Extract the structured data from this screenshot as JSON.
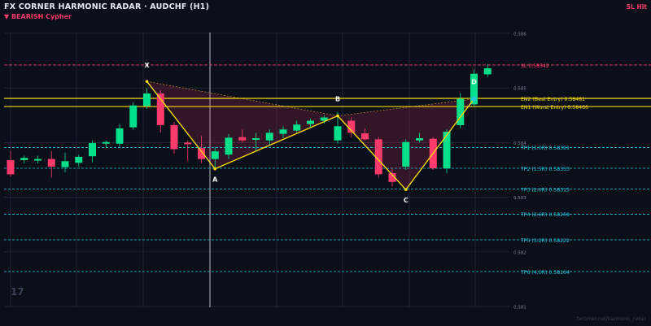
{
  "header": {
    "title": "FX CORNER HARMONIC RADAR  ·  AUDCHF (H1)",
    "pattern_label": "▼ BEARISH  Cypher",
    "status": "SL Hit"
  },
  "watermark": {
    "logo": "17",
    "source": "fxcorner.net/harmonic_radar"
  },
  "colors": {
    "background": "#0b0f1a",
    "grid": "#2a3142",
    "bull": "#00e08a",
    "bear": "#ff3b6b",
    "pattern_line": "#f5d90a",
    "sl": "#ff3b6b",
    "entry": "#f5d90a",
    "tp": "#1fc8dc",
    "d_marker": "#1fc8dc"
  },
  "chart_data": {
    "type": "candlestick",
    "symbol": "AUDCHF",
    "timeframe": "H1",
    "ylim": [
      0.581,
      0.586
    ],
    "y_ticks": [
      0.581,
      0.582,
      0.583,
      0.584,
      0.585,
      0.586
    ],
    "y_tick_labels": [
      "0.581",
      "0.582",
      "0.583",
      "0.584",
      "0.585",
      "0.586"
    ],
    "candles": [
      {
        "o": 0.58368,
        "h": 0.58385,
        "l": 0.58338,
        "c": 0.58342
      },
      {
        "o": 0.58368,
        "h": 0.58376,
        "l": 0.58362,
        "c": 0.58372
      },
      {
        "o": 0.58368,
        "h": 0.58376,
        "l": 0.58362,
        "c": 0.5837
      },
      {
        "o": 0.5837,
        "h": 0.58384,
        "l": 0.58336,
        "c": 0.58356
      },
      {
        "o": 0.58355,
        "h": 0.58382,
        "l": 0.58346,
        "c": 0.58366
      },
      {
        "o": 0.58363,
        "h": 0.58378,
        "l": 0.58356,
        "c": 0.58374
      },
      {
        "o": 0.58375,
        "h": 0.58404,
        "l": 0.58364,
        "c": 0.58399
      },
      {
        "o": 0.58398,
        "h": 0.58404,
        "l": 0.5839,
        "c": 0.58401
      },
      {
        "o": 0.58398,
        "h": 0.58434,
        "l": 0.58392,
        "c": 0.58426
      },
      {
        "o": 0.58428,
        "h": 0.58474,
        "l": 0.58424,
        "c": 0.58468
      },
      {
        "o": 0.58467,
        "h": 0.585,
        "l": 0.58462,
        "c": 0.5849
      },
      {
        "o": 0.5849,
        "h": 0.58496,
        "l": 0.58418,
        "c": 0.58432
      },
      {
        "o": 0.58432,
        "h": 0.58438,
        "l": 0.5838,
        "c": 0.58388
      },
      {
        "o": 0.584,
        "h": 0.58404,
        "l": 0.58366,
        "c": 0.58398
      },
      {
        "o": 0.5839,
        "h": 0.58412,
        "l": 0.58362,
        "c": 0.5837
      },
      {
        "o": 0.5837,
        "h": 0.58392,
        "l": 0.58352,
        "c": 0.58384
      },
      {
        "o": 0.58378,
        "h": 0.58416,
        "l": 0.5837,
        "c": 0.58409
      },
      {
        "o": 0.5841,
        "h": 0.58424,
        "l": 0.584,
        "c": 0.58404
      },
      {
        "o": 0.58408,
        "h": 0.58418,
        "l": 0.58384,
        "c": 0.58408
      },
      {
        "o": 0.58404,
        "h": 0.58424,
        "l": 0.58396,
        "c": 0.58418
      },
      {
        "o": 0.58416,
        "h": 0.5843,
        "l": 0.58408,
        "c": 0.58424
      },
      {
        "o": 0.58422,
        "h": 0.5844,
        "l": 0.58418,
        "c": 0.58433
      },
      {
        "o": 0.58434,
        "h": 0.58444,
        "l": 0.58428,
        "c": 0.5844
      },
      {
        "o": 0.5844,
        "h": 0.5845,
        "l": 0.58434,
        "c": 0.58446
      },
      {
        "o": 0.58404,
        "h": 0.58456,
        "l": 0.58398,
        "c": 0.5843
      },
      {
        "o": 0.5844,
        "h": 0.58446,
        "l": 0.5841,
        "c": 0.58418
      },
      {
        "o": 0.58417,
        "h": 0.58426,
        "l": 0.58404,
        "c": 0.58406
      },
      {
        "o": 0.58406,
        "h": 0.5841,
        "l": 0.58336,
        "c": 0.58342
      },
      {
        "o": 0.58344,
        "h": 0.58352,
        "l": 0.5832,
        "c": 0.58328
      },
      {
        "o": 0.58356,
        "h": 0.58406,
        "l": 0.5835,
        "c": 0.58401
      },
      {
        "o": 0.58404,
        "h": 0.58418,
        "l": 0.584,
        "c": 0.58408
      },
      {
        "o": 0.58407,
        "h": 0.5841,
        "l": 0.5835,
        "c": 0.58353
      },
      {
        "o": 0.58353,
        "h": 0.58424,
        "l": 0.58344,
        "c": 0.5842
      },
      {
        "o": 0.58432,
        "h": 0.5849,
        "l": 0.58426,
        "c": 0.5848
      },
      {
        "o": 0.5847,
        "h": 0.58534,
        "l": 0.58466,
        "c": 0.58526
      },
      {
        "o": 0.58525,
        "h": 0.58544,
        "l": 0.5852,
        "c": 0.58536
      }
    ],
    "pattern": {
      "name": "Cypher",
      "direction": "bearish",
      "points": [
        {
          "label": "X",
          "index": 10,
          "price": 0.58512
        },
        {
          "label": "A",
          "index": 15,
          "price": 0.58352
        },
        {
          "label": "B",
          "index": 24,
          "price": 0.58449
        },
        {
          "label": "C",
          "index": 29,
          "price": 0.58314
        },
        {
          "label": "D",
          "index": 34,
          "price": 0.5848
        }
      ]
    },
    "levels": [
      {
        "kind": "sl",
        "label": "SL  0.58542",
        "price": 0.58542
      },
      {
        "kind": "entry",
        "label": "EN2 (Best Entry)  0.58481",
        "price": 0.58481
      },
      {
        "kind": "entry",
        "label": "EN1 (Worst Entry)  0.58466",
        "price": 0.58466
      },
      {
        "kind": "tp",
        "label": "TP1 (1.0R)  0.58391",
        "price": 0.58391
      },
      {
        "kind": "tp",
        "label": "TP2 (1.5R)  0.58353",
        "price": 0.58353
      },
      {
        "kind": "tp",
        "label": "TP3 (2.0R)  0.58315",
        "price": 0.58315
      },
      {
        "kind": "tp",
        "label": "TP4 (2.6R)  0.58269",
        "price": 0.58269
      },
      {
        "kind": "tp",
        "label": "TP5 (3.2R)  0.58222",
        "price": 0.58222
      },
      {
        "kind": "tp",
        "label": "TP6 (4.0R)  0.58164",
        "price": 0.58164
      }
    ],
    "grid": true
  }
}
